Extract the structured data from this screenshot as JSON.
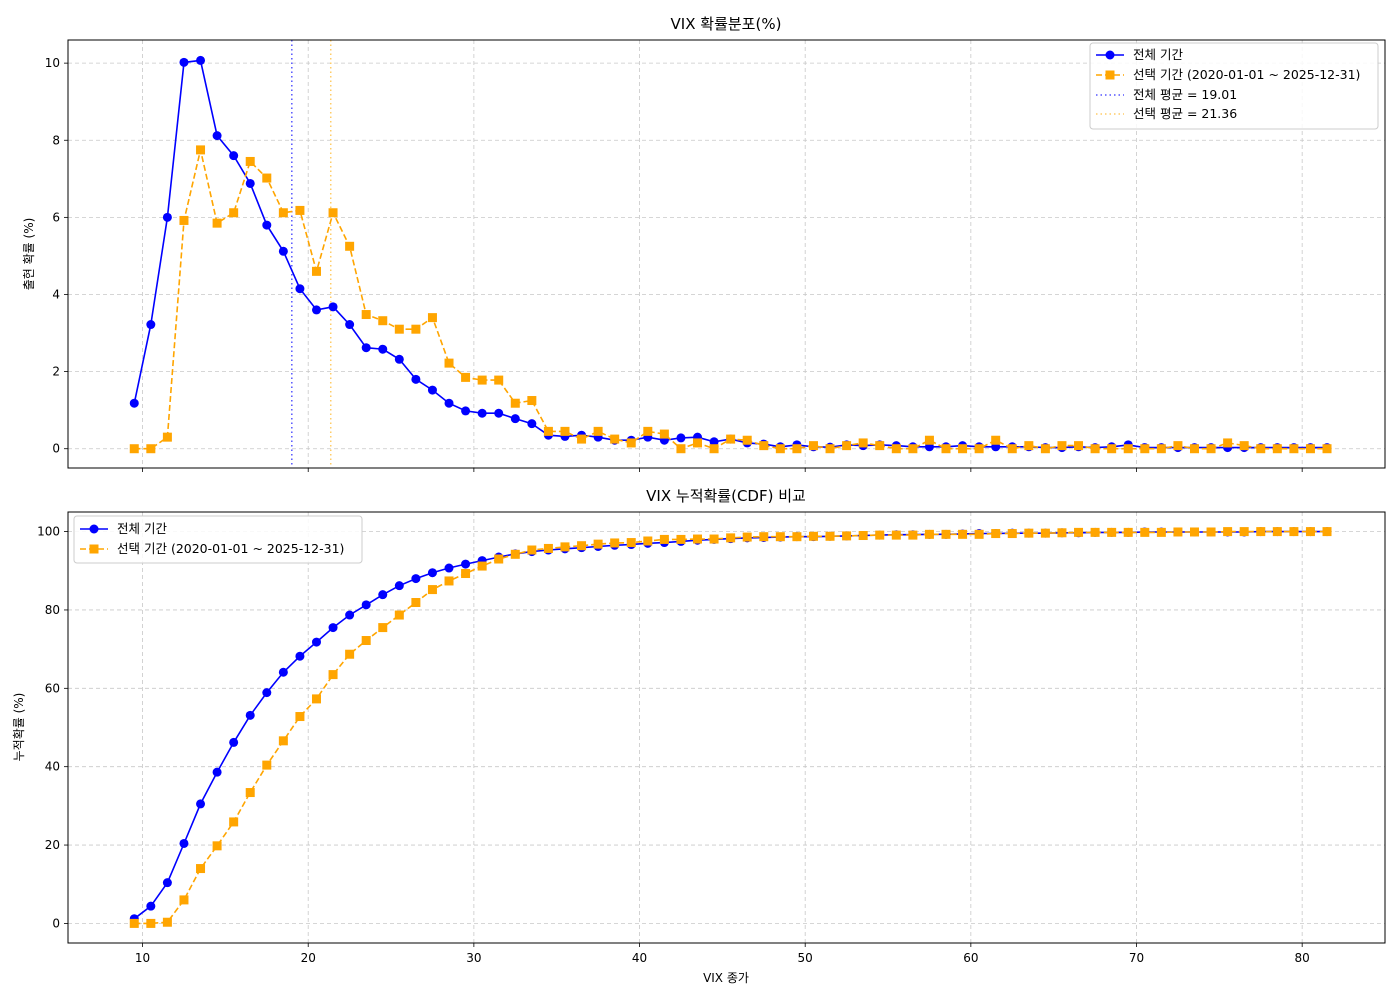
{
  "chart_data": [
    {
      "type": "line",
      "title": "VIX 확률분포(%)",
      "xlabel": "",
      "ylabel": "출현 확률 (%)",
      "xlim": [
        5.5,
        85
      ],
      "ylim": [
        -0.5,
        10.6
      ],
      "xticks": [
        10,
        20,
        30,
        40,
        50,
        60,
        70,
        80
      ],
      "yticks": [
        0,
        2,
        4,
        6,
        8,
        10
      ],
      "grid": true,
      "legend_position": "top-right",
      "x": [
        9.5,
        10.5,
        11.5,
        12.5,
        13.5,
        14.5,
        15.5,
        16.5,
        17.5,
        18.5,
        19.5,
        20.5,
        21.5,
        22.5,
        23.5,
        24.5,
        25.5,
        26.5,
        27.5,
        28.5,
        29.5,
        30.5,
        31.5,
        32.5,
        33.5,
        34.5,
        35.5,
        36.5,
        37.5,
        38.5,
        39.5,
        40.5,
        41.5,
        42.5,
        43.5,
        44.5,
        45.5,
        46.5,
        47.5,
        48.5,
        49.5,
        50.5,
        51.5,
        52.5,
        53.5,
        54.5,
        55.5,
        56.5,
        57.5,
        58.5,
        59.5,
        60.5,
        61.5,
        62.5,
        63.5,
        64.5,
        65.5,
        66.5,
        67.5,
        68.5,
        69.5,
        70.5,
        71.5,
        72.5,
        73.5,
        74.5,
        75.5,
        76.5,
        77.5,
        78.5,
        79.5,
        80.5,
        81.5
      ],
      "series": [
        {
          "name": "전체 기간",
          "color": "#0000ff",
          "marker": "circle",
          "linestyle": "solid",
          "values": [
            1.18,
            3.22,
            6.0,
            10.02,
            10.07,
            8.12,
            7.6,
            6.88,
            5.8,
            5.12,
            4.15,
            3.6,
            3.68,
            3.22,
            2.62,
            2.58,
            2.32,
            1.8,
            1.52,
            1.18,
            0.98,
            0.92,
            0.92,
            0.78,
            0.65,
            0.35,
            0.32,
            0.35,
            0.3,
            0.22,
            0.22,
            0.3,
            0.22,
            0.28,
            0.3,
            0.18,
            0.25,
            0.15,
            0.12,
            0.05,
            0.1,
            0.05,
            0.04,
            0.1,
            0.08,
            0.1,
            0.08,
            0.05,
            0.05,
            0.05,
            0.08,
            0.05,
            0.05,
            0.05,
            0.05,
            0.03,
            0.03,
            0.05,
            0.03,
            0.05,
            0.1,
            0.03,
            0.03,
            0.03,
            0.03,
            0.03,
            0.03,
            0.03,
            0.03,
            0.03,
            0.03,
            0.03,
            0.03
          ]
        },
        {
          "name": "선택 기간 (2020-01-01 ~ 2025-12-31)",
          "color": "#ffa500",
          "marker": "square",
          "linestyle": "dashed",
          "values": [
            0.0,
            0.0,
            0.3,
            5.92,
            7.75,
            5.85,
            6.12,
            7.45,
            7.02,
            6.12,
            6.18,
            4.6,
            6.12,
            5.25,
            3.48,
            3.32,
            3.1,
            3.1,
            3.4,
            2.22,
            1.85,
            1.78,
            1.78,
            1.18,
            1.25,
            0.45,
            0.45,
            0.25,
            0.45,
            0.25,
            0.15,
            0.45,
            0.38,
            0.0,
            0.15,
            0.0,
            0.25,
            0.22,
            0.08,
            0.0,
            0.0,
            0.08,
            0.0,
            0.08,
            0.15,
            0.08,
            0.0,
            0.0,
            0.22,
            0.0,
            0.0,
            0.0,
            0.22,
            0.0,
            0.08,
            0.0,
            0.08,
            0.08,
            0.0,
            0.0,
            0.0,
            0.0,
            0.0,
            0.08,
            0.0,
            0.0,
            0.15,
            0.08,
            0.0,
            0.0,
            0.0,
            0.0,
            0.0
          ]
        }
      ],
      "mean_lines": [
        {
          "name": "전체 평균 = 19.01",
          "value": 19.01,
          "color": "#5555ff",
          "linestyle": "dotted"
        },
        {
          "name": "선택 평균 = 21.36",
          "value": 21.36,
          "color": "#ffcc66",
          "linestyle": "dotted"
        }
      ]
    },
    {
      "type": "line",
      "title": "VIX 누적확률(CDF) 비교",
      "xlabel": "VIX 종가",
      "ylabel": "누적확률 (%)",
      "xlim": [
        5.5,
        85
      ],
      "ylim": [
        -5,
        105
      ],
      "xticks": [
        10,
        20,
        30,
        40,
        50,
        60,
        70,
        80
      ],
      "yticks": [
        0,
        20,
        40,
        60,
        80,
        100
      ],
      "grid": true,
      "legend_position": "top-left",
      "x": [
        9.5,
        10.5,
        11.5,
        12.5,
        13.5,
        14.5,
        15.5,
        16.5,
        17.5,
        18.5,
        19.5,
        20.5,
        21.5,
        22.5,
        23.5,
        24.5,
        25.5,
        26.5,
        27.5,
        28.5,
        29.5,
        30.5,
        31.5,
        32.5,
        33.5,
        34.5,
        35.5,
        36.5,
        37.5,
        38.5,
        39.5,
        40.5,
        41.5,
        42.5,
        43.5,
        44.5,
        45.5,
        46.5,
        47.5,
        48.5,
        49.5,
        50.5,
        51.5,
        52.5,
        53.5,
        54.5,
        55.5,
        56.5,
        57.5,
        58.5,
        59.5,
        60.5,
        61.5,
        62.5,
        63.5,
        64.5,
        65.5,
        66.5,
        67.5,
        68.5,
        69.5,
        70.5,
        71.5,
        72.5,
        73.5,
        74.5,
        75.5,
        76.5,
        77.5,
        78.5,
        79.5,
        80.5,
        81.5
      ],
      "series": [
        {
          "name": "전체 기간",
          "color": "#0000ff",
          "marker": "circle",
          "linestyle": "solid",
          "values": [
            1.2,
            4.4,
            10.4,
            20.4,
            30.5,
            38.6,
            46.2,
            53.1,
            58.9,
            64.1,
            68.2,
            71.8,
            75.5,
            78.7,
            81.3,
            83.9,
            86.2,
            88.0,
            89.5,
            90.7,
            91.7,
            92.6,
            93.5,
            94.3,
            94.9,
            95.3,
            95.6,
            95.9,
            96.2,
            96.5,
            96.7,
            97.0,
            97.2,
            97.5,
            97.8,
            98.0,
            98.2,
            98.4,
            98.5,
            98.6,
            98.7,
            98.7,
            98.8,
            98.9,
            99.0,
            99.1,
            99.2,
            99.2,
            99.3,
            99.3,
            99.4,
            99.5,
            99.5,
            99.6,
            99.6,
            99.6,
            99.7,
            99.7,
            99.8,
            99.8,
            99.8,
            99.9,
            99.9,
            99.9,
            99.9,
            99.9,
            99.9,
            99.9,
            100.0,
            100.0,
            100.0,
            100.0,
            100.0
          ]
        },
        {
          "name": "선택 기간 (2020-01-01 ~ 2025-12-31)",
          "color": "#ffa500",
          "marker": "square",
          "linestyle": "dashed",
          "values": [
            0.0,
            0.0,
            0.3,
            6.0,
            14.0,
            19.8,
            25.9,
            33.4,
            40.4,
            46.6,
            52.8,
            57.3,
            63.5,
            68.7,
            72.2,
            75.5,
            78.7,
            81.9,
            85.2,
            87.4,
            89.3,
            91.2,
            93.0,
            94.2,
            95.3,
            95.7,
            96.1,
            96.4,
            96.8,
            97.1,
            97.2,
            97.6,
            98.0,
            98.0,
            98.1,
            98.1,
            98.4,
            98.6,
            98.7,
            98.7,
            98.7,
            98.8,
            98.8,
            98.9,
            99.0,
            99.1,
            99.1,
            99.1,
            99.3,
            99.3,
            99.3,
            99.3,
            99.5,
            99.5,
            99.6,
            99.6,
            99.7,
            99.8,
            99.8,
            99.8,
            99.8,
            99.8,
            99.8,
            99.9,
            99.9,
            99.9,
            100.0,
            100.0,
            100.0,
            100.0,
            100.0,
            100.0,
            100.0
          ]
        }
      ]
    }
  ]
}
